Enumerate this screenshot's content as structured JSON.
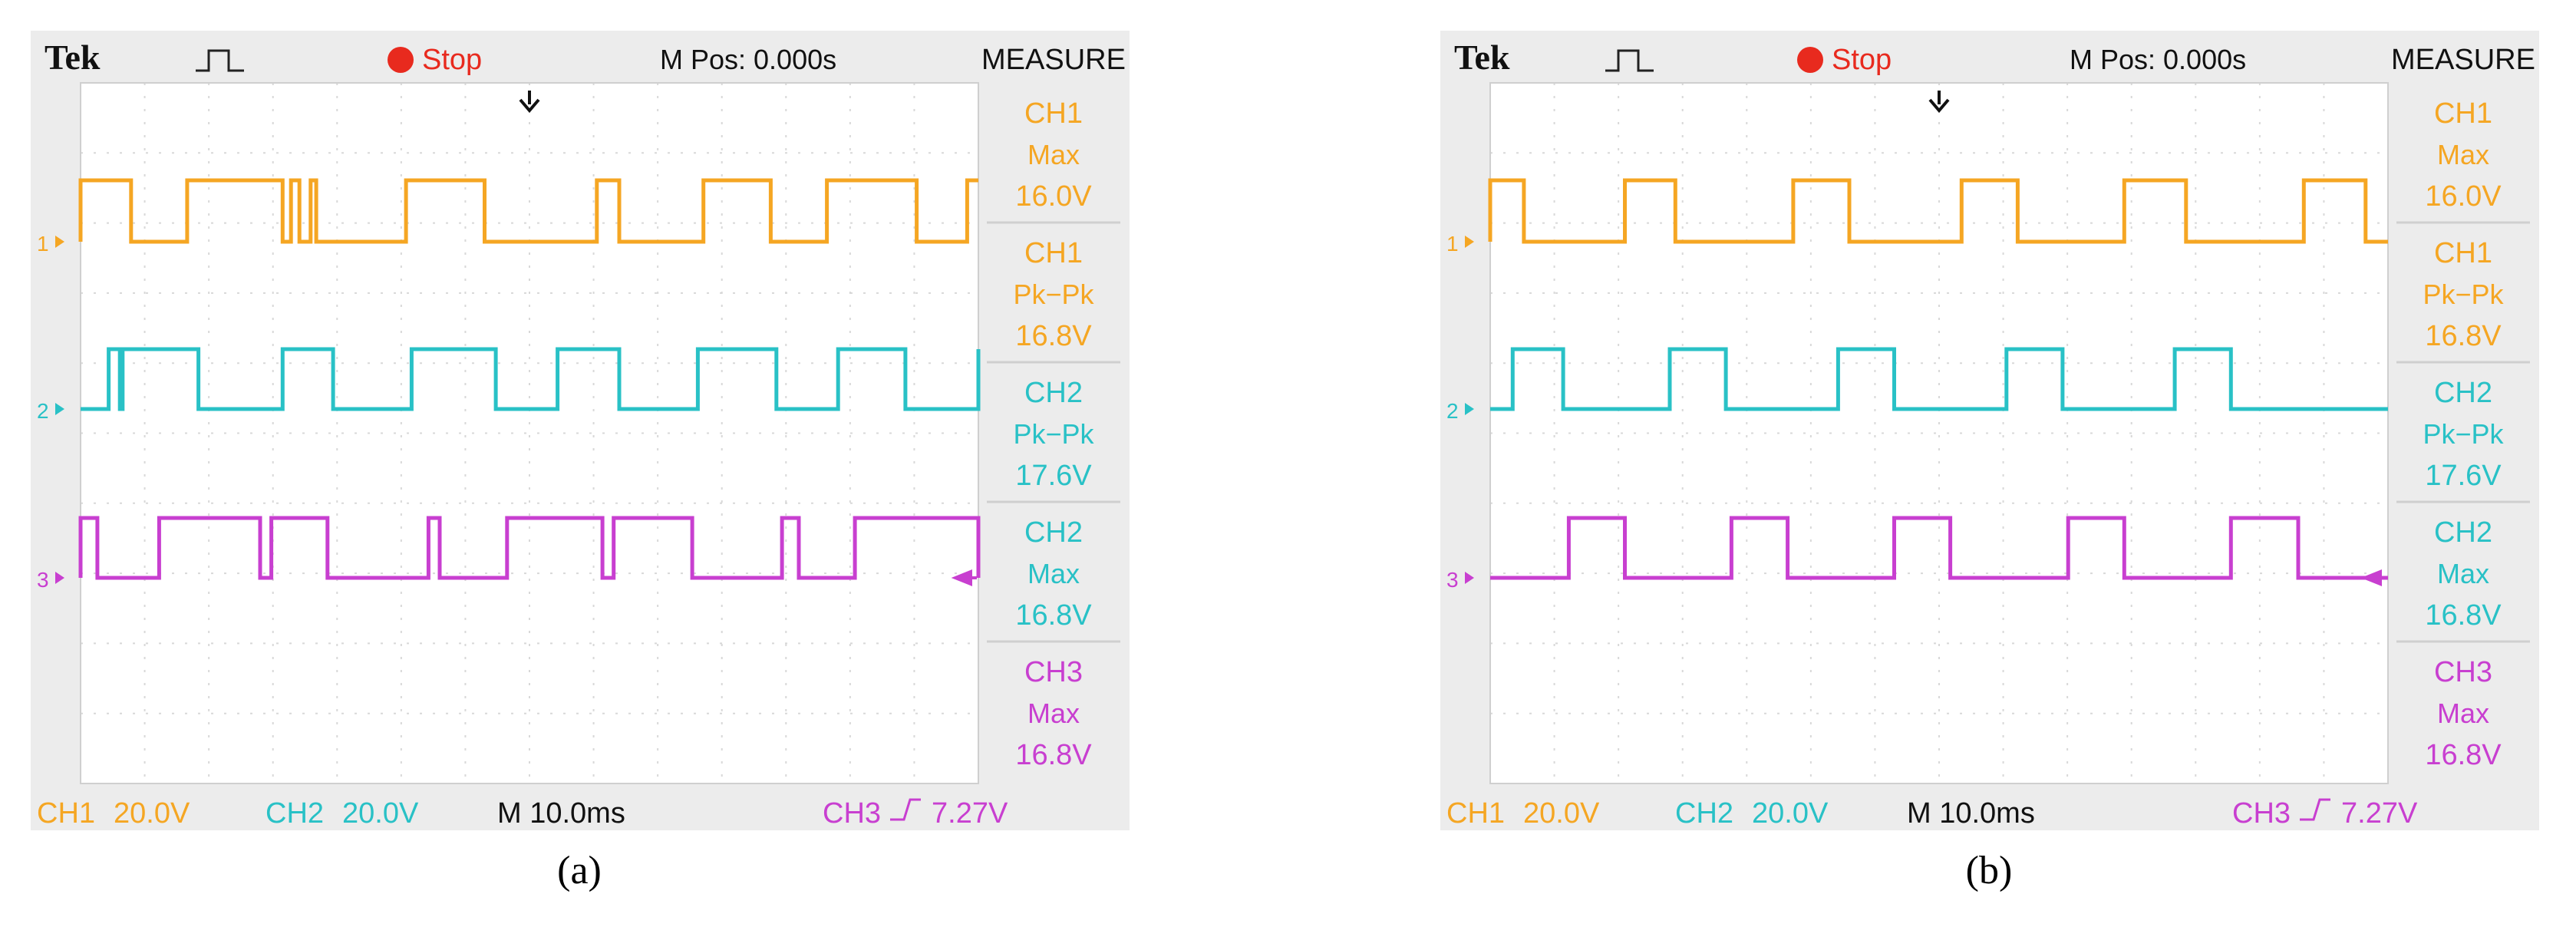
{
  "colors": {
    "ch1": "#f5a623",
    "ch2": "#29c1c6",
    "ch3": "#c83fd0",
    "grid": "#d8d8d8",
    "bezel": "#ececec",
    "stop": "#e82a1e"
  },
  "panels": [
    {
      "caption": "(a)",
      "header": {
        "brand": "Tek",
        "status": "Stop",
        "mpos": "M Pos: 0.000s",
        "measure_title": "MEASURE"
      },
      "measurements": [
        {
          "ch": "CH1",
          "kind": "Max",
          "value": "16.0V",
          "color": "#f5a623"
        },
        {
          "ch": "CH1",
          "kind": "Pk−Pk",
          "value": "16.8V",
          "color": "#f5a623"
        },
        {
          "ch": "CH2",
          "kind": "Pk−Pk",
          "value": "17.6V",
          "color": "#29c1c6"
        },
        {
          "ch": "CH2",
          "kind": "Max",
          "value": "16.8V",
          "color": "#29c1c6"
        },
        {
          "ch": "CH3",
          "kind": "Max",
          "value": "16.8V",
          "color": "#c83fd0"
        }
      ],
      "footer": {
        "ch1_label": "CH1",
        "ch1_scale": "20.0V",
        "ch2_label": "CH2",
        "ch2_scale": "20.0V",
        "timebase": "M 10.0ms",
        "trig_label": "CH3",
        "trig_slope": "↗",
        "trig_level": "7.27V"
      },
      "chart_data": {
        "type": "line",
        "x_unit_divisions": 10,
        "series": [
          {
            "name": "1",
            "color": "#f5a623",
            "high": 16.0,
            "low": 0,
            "edges": [
              0.0,
              0.9,
              1.9,
              3.6,
              3.75,
              3.9,
              4.1,
              4.2,
              5.8,
              7.2,
              9.2,
              9.6,
              11.1,
              12.3,
              13.3,
              14.9,
              15.8
            ]
          },
          {
            "name": "2",
            "color": "#29c1c6",
            "high": 16.8,
            "low": 0,
            "edges": [
              0.5,
              0.7,
              0.75,
              2.1,
              3.6,
              4.5,
              5.9,
              7.4,
              8.5,
              9.6,
              11.0,
              12.4,
              13.5,
              14.7,
              16.0
            ]
          },
          {
            "name": "3",
            "color": "#c83fd0",
            "high": 16.8,
            "low": 0,
            "edges": [
              0.0,
              0.3,
              1.4,
              3.2,
              3.4,
              4.4,
              6.2,
              6.4,
              7.6,
              9.3,
              9.5,
              10.9,
              12.5,
              12.8,
              13.8,
              16.0
            ]
          }
        ]
      }
    },
    {
      "caption": "(b)",
      "header": {
        "brand": "Tek",
        "status": "Stop",
        "mpos": "M Pos: 0.000s",
        "measure_title": "MEASURE"
      },
      "measurements": [
        {
          "ch": "CH1",
          "kind": "Max",
          "value": "16.0V",
          "color": "#f5a623"
        },
        {
          "ch": "CH1",
          "kind": "Pk−Pk",
          "value": "16.8V",
          "color": "#f5a623"
        },
        {
          "ch": "CH2",
          "kind": "Pk−Pk",
          "value": "17.6V",
          "color": "#29c1c6"
        },
        {
          "ch": "CH2",
          "kind": "Max",
          "value": "16.8V",
          "color": "#29c1c6"
        },
        {
          "ch": "CH3",
          "kind": "Max",
          "value": "16.8V",
          "color": "#c83fd0"
        }
      ],
      "footer": {
        "ch1_label": "CH1",
        "ch1_scale": "20.0V",
        "ch2_label": "CH2",
        "ch2_scale": "20.0V",
        "timebase": "M 10.0ms",
        "trig_label": "CH3",
        "trig_slope": "↗",
        "trig_level": "7.27V"
      },
      "chart_data": {
        "type": "line",
        "x_unit_divisions": 10,
        "series": [
          {
            "name": "1",
            "color": "#f5a623",
            "high": 16.0,
            "low": 0,
            "edges": [
              0.0,
              0.6,
              2.4,
              3.3,
              5.4,
              6.4,
              8.4,
              9.4,
              11.3,
              12.4,
              14.5,
              15.6
            ]
          },
          {
            "name": "2",
            "color": "#29c1c6",
            "high": 16.8,
            "low": 0,
            "edges": [
              0.4,
              1.3,
              3.2,
              4.2,
              6.2,
              7.2,
              9.2,
              10.2,
              12.2,
              13.2
            ]
          },
          {
            "name": "3",
            "color": "#c83fd0",
            "high": 16.8,
            "low": 0,
            "edges": [
              1.4,
              2.4,
              4.3,
              5.3,
              7.2,
              8.2,
              10.3,
              11.3,
              13.2,
              14.4
            ]
          }
        ]
      }
    }
  ]
}
